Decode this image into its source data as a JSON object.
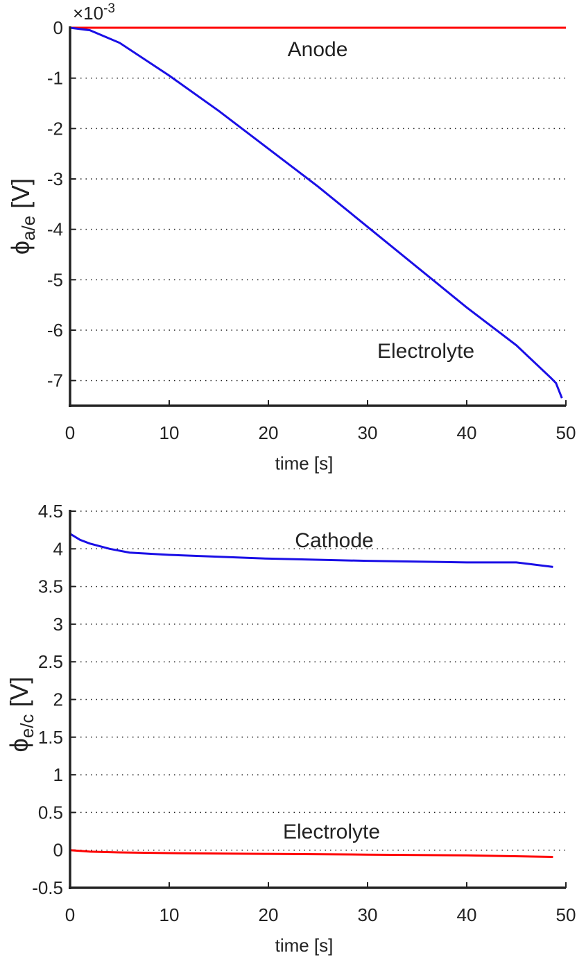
{
  "chart_data": [
    {
      "type": "line",
      "y_exponent_base": "×10",
      "y_exponent": "-3",
      "ylabel": "ϕ",
      "ylabel_sub": "a/e",
      "ylabel_unit": "[V]",
      "xlabel": "time [s]",
      "xlim": [
        0,
        50
      ],
      "xticks": [
        0,
        10,
        20,
        30,
        40,
        50
      ],
      "ylim": [
        -7.5,
        0
      ],
      "yticks": [
        0,
        -1,
        -2,
        -3,
        -4,
        -5,
        -6,
        -7
      ],
      "grid": true,
      "annotations": [
        "Anode",
        "Electrolyte"
      ],
      "series": [
        {
          "color": "#ff0000",
          "x": [
            0,
            50
          ],
          "values": [
            0,
            0
          ]
        },
        {
          "color": "#1a0fe6",
          "x": [
            0,
            2,
            5,
            10,
            15,
            20,
            25,
            30,
            35,
            40,
            45,
            48.5,
            49,
            49.6
          ],
          "values": [
            0,
            -0.05,
            -0.3,
            -0.95,
            -1.65,
            -2.4,
            -3.15,
            -3.95,
            -4.75,
            -5.55,
            -6.3,
            -6.95,
            -7.05,
            -7.35
          ]
        }
      ]
    },
    {
      "type": "line",
      "ylabel": "ϕ",
      "ylabel_sub": "e/c",
      "ylabel_unit": "[V]",
      "xlabel": "time [s]",
      "xlim": [
        0,
        50
      ],
      "xticks": [
        0,
        10,
        20,
        30,
        40,
        50
      ],
      "ylim": [
        -0.5,
        4.5
      ],
      "yticks": [
        4.5,
        4,
        3.5,
        3,
        2.5,
        2,
        1.5,
        1,
        0.5,
        0,
        -0.5
      ],
      "grid": true,
      "annotations": [
        "Cathode",
        "Electrolyte"
      ],
      "series": [
        {
          "color": "#1a0fe6",
          "x": [
            0,
            1,
            2,
            4,
            6,
            10,
            20,
            30,
            40,
            45,
            48.7
          ],
          "values": [
            4.2,
            4.12,
            4.07,
            4.0,
            3.95,
            3.92,
            3.87,
            3.84,
            3.82,
            3.82,
            3.76
          ]
        },
        {
          "color": "#ff0000",
          "x": [
            0,
            2,
            5,
            10,
            20,
            30,
            40,
            48.7
          ],
          "values": [
            0,
            -0.02,
            -0.03,
            -0.04,
            -0.05,
            -0.06,
            -0.07,
            -0.09
          ]
        }
      ]
    }
  ]
}
